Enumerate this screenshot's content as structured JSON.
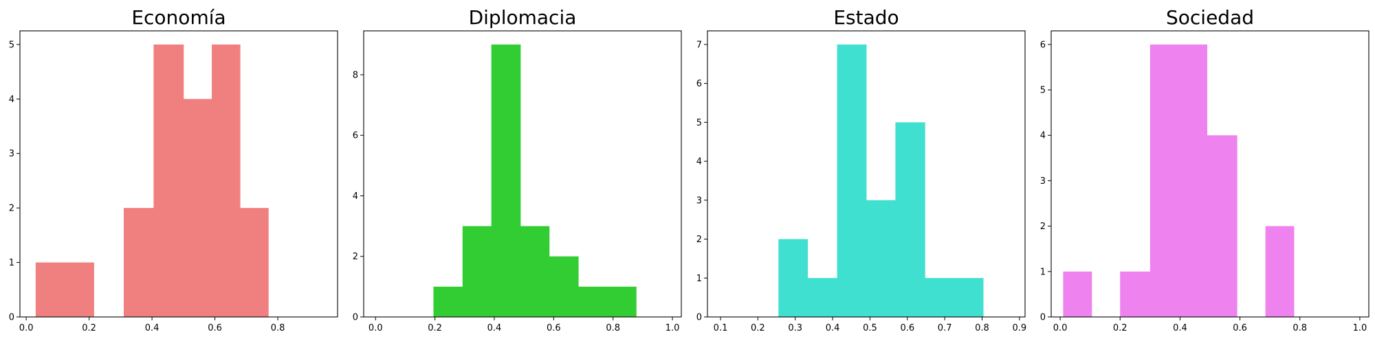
{
  "chart_data": [
    {
      "type": "bar",
      "title": "Economía",
      "xlabel": "",
      "ylabel": "",
      "color": "#f08080",
      "xlim": [
        -0.02,
        0.99
      ],
      "ylim": [
        0,
        5.25
      ],
      "xticks": [
        0.0,
        0.2,
        0.4,
        0.6,
        0.8
      ],
      "yticks": [
        0,
        1,
        2,
        3,
        4,
        5
      ],
      "bins": [
        {
          "x0": 0.03,
          "x1": 0.125,
          "value": 1
        },
        {
          "x0": 0.125,
          "x1": 0.215,
          "value": 1
        },
        {
          "x0": 0.215,
          "x1": 0.31,
          "value": 0
        },
        {
          "x0": 0.31,
          "x1": 0.405,
          "value": 2
        },
        {
          "x0": 0.405,
          "x1": 0.5,
          "value": 5
        },
        {
          "x0": 0.5,
          "x1": 0.59,
          "value": 4
        },
        {
          "x0": 0.59,
          "x1": 0.68,
          "value": 5
        },
        {
          "x0": 0.68,
          "x1": 0.77,
          "value": 2
        }
      ]
    },
    {
      "type": "bar",
      "title": "Diplomacia",
      "xlabel": "",
      "ylabel": "",
      "color": "#32cd32",
      "xlim": [
        -0.04,
        1.03
      ],
      "ylim": [
        0,
        9.45
      ],
      "xticks": [
        0.0,
        0.2,
        0.4,
        0.6,
        0.8,
        1.0
      ],
      "yticks": [
        0,
        2,
        4,
        6,
        8
      ],
      "bins": [
        {
          "x0": 0.195,
          "x1": 0.293,
          "value": 1
        },
        {
          "x0": 0.293,
          "x1": 0.39,
          "value": 3
        },
        {
          "x0": 0.39,
          "x1": 0.488,
          "value": 9
        },
        {
          "x0": 0.488,
          "x1": 0.585,
          "value": 3
        },
        {
          "x0": 0.585,
          "x1": 0.683,
          "value": 2
        },
        {
          "x0": 0.683,
          "x1": 0.78,
          "value": 1
        },
        {
          "x0": 0.78,
          "x1": 0.878,
          "value": 1
        }
      ]
    },
    {
      "type": "bar",
      "title": "Estado",
      "xlabel": "",
      "ylabel": "",
      "color": "#40e0d0",
      "xlim": [
        0.065,
        0.915
      ],
      "ylim": [
        0,
        7.35
      ],
      "xticks": [
        0.1,
        0.2,
        0.3,
        0.4,
        0.5,
        0.6,
        0.7,
        0.8,
        0.9
      ],
      "yticks": [
        0,
        1,
        2,
        3,
        4,
        5,
        6,
        7
      ],
      "bins": [
        {
          "x0": 0.255,
          "x1": 0.333,
          "value": 2
        },
        {
          "x0": 0.333,
          "x1": 0.412,
          "value": 1
        },
        {
          "x0": 0.412,
          "x1": 0.49,
          "value": 7
        },
        {
          "x0": 0.49,
          "x1": 0.568,
          "value": 3
        },
        {
          "x0": 0.568,
          "x1": 0.647,
          "value": 5
        },
        {
          "x0": 0.647,
          "x1": 0.725,
          "value": 1
        },
        {
          "x0": 0.725,
          "x1": 0.803,
          "value": 1
        }
      ]
    },
    {
      "type": "bar",
      "title": "Sociedad",
      "xlabel": "",
      "ylabel": "",
      "color": "#ee82ee",
      "xlim": [
        -0.03,
        1.03
      ],
      "ylim": [
        0,
        6.3
      ],
      "xticks": [
        0.0,
        0.2,
        0.4,
        0.6,
        0.8,
        1.0
      ],
      "yticks": [
        0,
        1,
        2,
        3,
        4,
        5,
        6
      ],
      "bins": [
        {
          "x0": 0.01,
          "x1": 0.105,
          "value": 1
        },
        {
          "x0": 0.105,
          "x1": 0.2,
          "value": 0
        },
        {
          "x0": 0.2,
          "x1": 0.3,
          "value": 1
        },
        {
          "x0": 0.3,
          "x1": 0.395,
          "value": 6
        },
        {
          "x0": 0.395,
          "x1": 0.49,
          "value": 6
        },
        {
          "x0": 0.49,
          "x1": 0.59,
          "value": 4
        },
        {
          "x0": 0.59,
          "x1": 0.685,
          "value": 0
        },
        {
          "x0": 0.685,
          "x1": 0.78,
          "value": 2
        }
      ]
    }
  ]
}
